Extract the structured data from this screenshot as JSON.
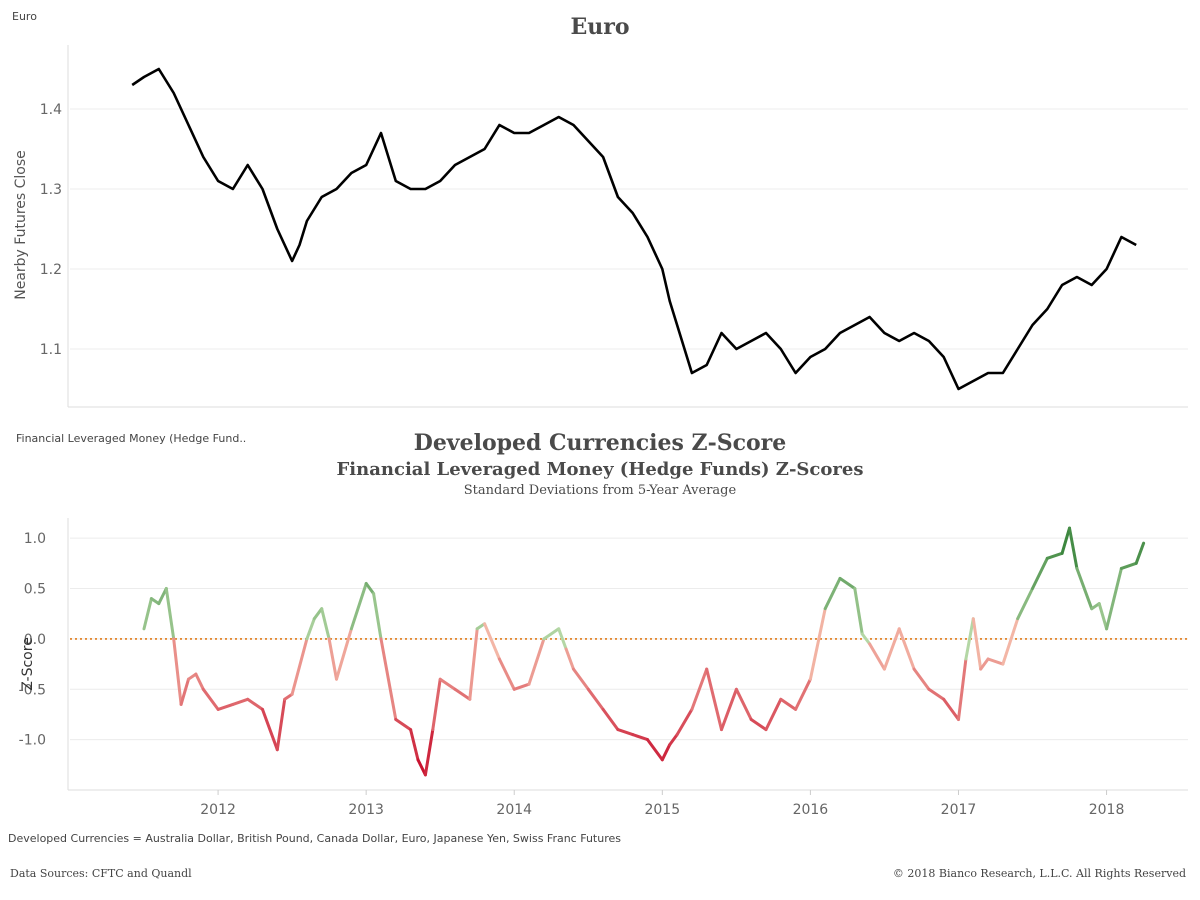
{
  "corner_label_top": "Euro",
  "corner_label_bottom": "Financial Leveraged Money (Hedge Fund..",
  "footer": {
    "note": "Developed Currencies = Australia Dollar, British Pound, Canada Dollar, Euro, Japanese Yen, Swiss Franc Futures",
    "sources": "Data Sources: CFTC and Quandl",
    "copyright": "© 2018 Bianco Research, L.L.C. All Rights Reserved"
  },
  "chart_data": [
    {
      "type": "line",
      "title": "Euro",
      "ylabel": "Nearby Futures Close",
      "ylim": [
        1.03,
        1.48
      ],
      "yticks": [
        "1.4",
        "1.3",
        "1.2",
        "1.1"
      ],
      "line_color": "#000000",
      "x": [
        2011.42,
        2011.5,
        2011.6,
        2011.7,
        2011.8,
        2011.9,
        2012.0,
        2012.1,
        2012.2,
        2012.3,
        2012.4,
        2012.5,
        2012.55,
        2012.6,
        2012.7,
        2012.8,
        2012.9,
        2013.0,
        2013.1,
        2013.2,
        2013.3,
        2013.4,
        2013.5,
        2013.6,
        2013.7,
        2013.8,
        2013.9,
        2014.0,
        2014.1,
        2014.2,
        2014.3,
        2014.4,
        2014.5,
        2014.6,
        2014.7,
        2014.8,
        2014.9,
        2015.0,
        2015.05,
        2015.1,
        2015.2,
        2015.3,
        2015.4,
        2015.5,
        2015.6,
        2015.7,
        2015.8,
        2015.9,
        2016.0,
        2016.1,
        2016.2,
        2016.3,
        2016.4,
        2016.5,
        2016.6,
        2016.7,
        2016.8,
        2016.9,
        2016.95,
        2017.0,
        2017.1,
        2017.2,
        2017.3,
        2017.4,
        2017.5,
        2017.6,
        2017.7,
        2017.8,
        2017.9,
        2018.0,
        2018.1,
        2018.2
      ],
      "y": [
        1.43,
        1.44,
        1.45,
        1.42,
        1.38,
        1.34,
        1.31,
        1.3,
        1.33,
        1.3,
        1.25,
        1.21,
        1.23,
        1.26,
        1.29,
        1.3,
        1.32,
        1.33,
        1.37,
        1.31,
        1.3,
        1.3,
        1.31,
        1.33,
        1.34,
        1.35,
        1.38,
        1.37,
        1.37,
        1.38,
        1.39,
        1.38,
        1.36,
        1.34,
        1.29,
        1.27,
        1.24,
        1.2,
        1.16,
        1.13,
        1.07,
        1.08,
        1.12,
        1.1,
        1.11,
        1.12,
        1.1,
        1.07,
        1.09,
        1.1,
        1.12,
        1.13,
        1.14,
        1.12,
        1.11,
        1.12,
        1.11,
        1.09,
        1.07,
        1.05,
        1.06,
        1.07,
        1.07,
        1.1,
        1.13,
        1.15,
        1.18,
        1.19,
        1.18,
        1.2,
        1.24,
        1.23
      ]
    },
    {
      "type": "line",
      "title": "Developed Currencies Z-Score",
      "subtitle": "Financial Leveraged Money (Hedge Funds) Z-Scores",
      "subsubtitle": "Standard Deviations from 5-Year Average",
      "ylabel": "Z-Score",
      "ylim": [
        -1.5,
        1.2
      ],
      "yticks": [
        "1.0",
        "0.5",
        "0.0",
        "-0.5",
        "-1.0"
      ],
      "xticks": [
        "2012",
        "2013",
        "2014",
        "2015",
        "2016",
        "2017",
        "2018"
      ],
      "reference_line": {
        "value": 0,
        "color": "#e07b1a",
        "style": "dotted"
      },
      "color_scale": {
        "negative_strong": "#c8102e",
        "neutral": "#f4b9a8",
        "positive_strong": "#2e7d32"
      },
      "x": [
        2011.5,
        2011.55,
        2011.6,
        2011.65,
        2011.7,
        2011.75,
        2011.8,
        2011.85,
        2011.9,
        2012.0,
        2012.1,
        2012.2,
        2012.3,
        2012.4,
        2012.45,
        2012.5,
        2012.6,
        2012.65,
        2012.7,
        2012.75,
        2012.8,
        2012.9,
        2013.0,
        2013.05,
        2013.1,
        2013.2,
        2013.3,
        2013.35,
        2013.4,
        2013.45,
        2013.5,
        2013.6,
        2013.7,
        2013.75,
        2013.8,
        2013.9,
        2014.0,
        2014.1,
        2014.2,
        2014.3,
        2014.35,
        2014.4,
        2014.5,
        2014.6,
        2014.7,
        2014.8,
        2014.9,
        2015.0,
        2015.05,
        2015.1,
        2015.2,
        2015.3,
        2015.4,
        2015.5,
        2015.6,
        2015.7,
        2015.8,
        2015.9,
        2016.0,
        2016.1,
        2016.2,
        2016.3,
        2016.35,
        2016.4,
        2016.5,
        2016.6,
        2016.7,
        2016.8,
        2016.9,
        2017.0,
        2017.05,
        2017.1,
        2017.15,
        2017.2,
        2017.3,
        2017.4,
        2017.5,
        2017.6,
        2017.7,
        2017.75,
        2017.8,
        2017.9,
        2017.95,
        2018.0,
        2018.1,
        2018.2,
        2018.25
      ],
      "y": [
        0.1,
        0.4,
        0.35,
        0.5,
        0.0,
        -0.65,
        -0.4,
        -0.35,
        -0.5,
        -0.7,
        -0.65,
        -0.6,
        -0.7,
        -1.1,
        -0.6,
        -0.55,
        0.0,
        0.2,
        0.3,
        0.0,
        -0.4,
        0.1,
        0.55,
        0.45,
        0.0,
        -0.8,
        -0.9,
        -1.2,
        -1.35,
        -0.9,
        -0.4,
        -0.5,
        -0.6,
        0.1,
        0.15,
        -0.2,
        -0.5,
        -0.45,
        0.0,
        0.1,
        -0.1,
        -0.3,
        -0.5,
        -0.7,
        -0.9,
        -0.95,
        -1.0,
        -1.2,
        -1.05,
        -0.95,
        -0.7,
        -0.3,
        -0.9,
        -0.5,
        -0.8,
        -0.9,
        -0.6,
        -0.7,
        -0.4,
        0.3,
        0.6,
        0.5,
        0.05,
        -0.05,
        -0.3,
        0.1,
        -0.3,
        -0.5,
        -0.6,
        -0.8,
        -0.2,
        0.2,
        -0.3,
        -0.2,
        -0.25,
        0.2,
        0.5,
        0.8,
        0.85,
        1.1,
        0.7,
        0.3,
        0.35,
        0.1,
        0.7,
        0.75,
        0.95
      ]
    }
  ]
}
